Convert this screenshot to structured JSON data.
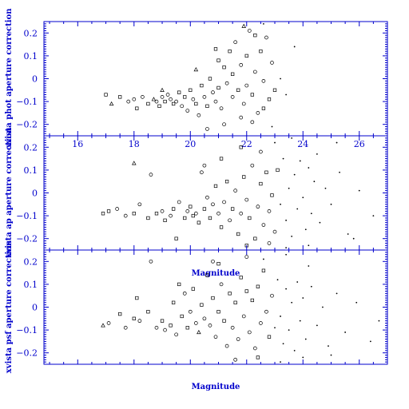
{
  "chart_data": {
    "type": "scatter",
    "xlim": [
      14.8,
      27.0
    ],
    "ylim": [
      -0.25,
      0.25
    ],
    "x_ticks": [
      16,
      18,
      20,
      22,
      24,
      26
    ],
    "y_ticks": [
      -0.2,
      -0.1,
      0,
      0.1,
      0.2
    ],
    "x_tick_labels": [
      "16",
      "18",
      "20",
      "22",
      "24",
      "26"
    ],
    "y_tick_labels": [
      "−0.2",
      "−0.1",
      "0",
      "0.1",
      "0.2"
    ],
    "grid": false,
    "panels": [
      {
        "id": "phot",
        "ylabel": "xvista phot aperture correction",
        "show_x_tick_labels": true,
        "xlabel": "",
        "points": [
          [
            17.0,
            -0.07,
            "s"
          ],
          [
            17.2,
            -0.11,
            "t"
          ],
          [
            17.5,
            -0.08,
            "s"
          ],
          [
            17.8,
            -0.1,
            "c"
          ],
          [
            18.0,
            -0.09,
            "c"
          ],
          [
            18.1,
            -0.13,
            "s"
          ],
          [
            18.3,
            -0.08,
            "c"
          ],
          [
            18.5,
            -0.11,
            "s"
          ],
          [
            18.7,
            -0.09,
            "t"
          ],
          [
            18.8,
            -0.1,
            "c"
          ],
          [
            18.9,
            -0.12,
            "s"
          ],
          [
            19.0,
            -0.08,
            "c"
          ],
          [
            19.1,
            -0.1,
            "s"
          ],
          [
            19.2,
            -0.07,
            "c"
          ],
          [
            19.3,
            -0.09,
            "c"
          ],
          [
            19.4,
            -0.11,
            "s"
          ],
          [
            19.5,
            -0.1,
            "c"
          ],
          [
            19.6,
            -0.06,
            "s"
          ],
          [
            19.7,
            -0.12,
            "c"
          ],
          [
            19.8,
            -0.08,
            "s"
          ],
          [
            19.9,
            -0.14,
            "c"
          ],
          [
            20.0,
            -0.05,
            "s"
          ],
          [
            20.1,
            -0.09,
            "c"
          ],
          [
            20.2,
            -0.11,
            "s"
          ],
          [
            20.3,
            -0.16,
            "c"
          ],
          [
            20.4,
            -0.03,
            "s"
          ],
          [
            20.5,
            -0.08,
            "c"
          ],
          [
            20.6,
            -0.12,
            "s"
          ],
          [
            20.7,
            0.0,
            "s"
          ],
          [
            20.8,
            -0.06,
            "c"
          ],
          [
            20.9,
            -0.1,
            "c"
          ],
          [
            21.0,
            -0.04,
            "s"
          ],
          [
            21.0,
            0.08,
            "s"
          ],
          [
            21.1,
            -0.13,
            "c"
          ],
          [
            21.2,
            0.05,
            "s"
          ],
          [
            21.3,
            -0.02,
            "c"
          ],
          [
            21.4,
            0.12,
            "s"
          ],
          [
            21.5,
            -0.08,
            "c"
          ],
          [
            21.5,
            0.02,
            "s"
          ],
          [
            21.6,
            0.16,
            "c"
          ],
          [
            21.7,
            -0.05,
            "s"
          ],
          [
            21.8,
            0.06,
            "c"
          ],
          [
            21.9,
            -0.11,
            "c"
          ],
          [
            22.0,
            0.1,
            "s"
          ],
          [
            22.0,
            -0.03,
            "c"
          ],
          [
            22.1,
            0.21,
            "c"
          ],
          [
            22.2,
            -0.07,
            "s"
          ],
          [
            22.3,
            0.03,
            "c"
          ],
          [
            22.4,
            -0.15,
            "c"
          ],
          [
            22.5,
            0.12,
            "s"
          ],
          [
            22.6,
            -0.01,
            "c"
          ],
          [
            22.7,
            0.18,
            "c"
          ],
          [
            22.8,
            -0.09,
            "s"
          ],
          [
            22.9,
            0.07,
            "c"
          ],
          [
            23.0,
            -0.05,
            "s"
          ],
          [
            21.2,
            -0.2,
            "c"
          ],
          [
            22.2,
            -0.19,
            "c"
          ],
          [
            20.6,
            -0.22,
            "c"
          ],
          [
            21.9,
            0.23,
            "t"
          ],
          [
            20.2,
            0.04,
            "t"
          ],
          [
            23.2,
            0.0,
            "d"
          ],
          [
            23.7,
            0.14,
            "d"
          ],
          [
            23.4,
            -0.07,
            "d"
          ],
          [
            22.9,
            -0.21,
            "d"
          ],
          [
            22.6,
            0.24,
            "d"
          ],
          [
            19.0,
            -0.05,
            "t"
          ],
          [
            20.9,
            0.13,
            "s"
          ],
          [
            22.3,
            0.19,
            "s"
          ],
          [
            21.8,
            -0.17,
            "c"
          ],
          [
            22.6,
            -0.13,
            "s"
          ]
        ]
      },
      {
        "id": "ap",
        "ylabel": "xvista ap aperture correction",
        "show_x_tick_labels": false,
        "xlabel": "Magnitude",
        "points": [
          [
            16.9,
            -0.09,
            "s"
          ],
          [
            17.1,
            -0.08,
            "s"
          ],
          [
            17.4,
            -0.07,
            "c"
          ],
          [
            17.7,
            -0.1,
            "c"
          ],
          [
            18.0,
            -0.09,
            "s"
          ],
          [
            18.0,
            0.13,
            "t"
          ],
          [
            18.2,
            -0.05,
            "c"
          ],
          [
            18.5,
            -0.11,
            "s"
          ],
          [
            18.6,
            0.08,
            "c"
          ],
          [
            18.8,
            -0.09,
            "s"
          ],
          [
            19.0,
            -0.08,
            "c"
          ],
          [
            19.1,
            -0.12,
            "s"
          ],
          [
            19.3,
            -0.1,
            "c"
          ],
          [
            19.4,
            -0.07,
            "s"
          ],
          [
            19.5,
            -0.2,
            "s"
          ],
          [
            19.6,
            -0.04,
            "c"
          ],
          [
            19.8,
            -0.11,
            "s"
          ],
          [
            19.9,
            -0.08,
            "c"
          ],
          [
            20.0,
            -0.06,
            "s"
          ],
          [
            20.1,
            -0.1,
            "s"
          ],
          [
            20.2,
            -0.09,
            "c"
          ],
          [
            20.3,
            -0.13,
            "s"
          ],
          [
            20.4,
            0.09,
            "c"
          ],
          [
            20.5,
            -0.07,
            "s"
          ],
          [
            20.6,
            -0.02,
            "c"
          ],
          [
            20.7,
            -0.11,
            "s"
          ],
          [
            20.8,
            -0.05,
            "c"
          ],
          [
            20.9,
            0.03,
            "s"
          ],
          [
            21.0,
            -0.09,
            "c"
          ],
          [
            21.1,
            -0.15,
            "s"
          ],
          [
            21.2,
            -0.04,
            "c"
          ],
          [
            21.3,
            0.05,
            "s"
          ],
          [
            21.4,
            -0.12,
            "c"
          ],
          [
            21.5,
            -0.07,
            "s"
          ],
          [
            21.6,
            0.01,
            "c"
          ],
          [
            21.7,
            -0.18,
            "s"
          ],
          [
            21.8,
            -0.09,
            "c"
          ],
          [
            21.9,
            0.07,
            "s"
          ],
          [
            22.0,
            -0.03,
            "c"
          ],
          [
            22.1,
            -0.11,
            "s"
          ],
          [
            22.2,
            0.12,
            "c"
          ],
          [
            22.3,
            -0.2,
            "s"
          ],
          [
            22.4,
            -0.06,
            "c"
          ],
          [
            22.5,
            0.04,
            "s"
          ],
          [
            22.6,
            -0.14,
            "c"
          ],
          [
            22.7,
            0.09,
            "s"
          ],
          [
            22.8,
            -0.08,
            "c"
          ],
          [
            22.9,
            -0.01,
            "s"
          ],
          [
            23.0,
            -0.17,
            "c"
          ],
          [
            23.1,
            0.1,
            "s"
          ],
          [
            23.2,
            -0.05,
            "d"
          ],
          [
            23.3,
            0.15,
            "d"
          ],
          [
            23.4,
            -0.12,
            "d"
          ],
          [
            23.5,
            0.02,
            "d"
          ],
          [
            23.6,
            -0.19,
            "d"
          ],
          [
            23.7,
            0.08,
            "d"
          ],
          [
            23.8,
            -0.07,
            "d"
          ],
          [
            23.9,
            0.14,
            "d"
          ],
          [
            24.0,
            -0.02,
            "d"
          ],
          [
            24.1,
            -0.16,
            "d"
          ],
          [
            24.2,
            0.11,
            "d"
          ],
          [
            24.3,
            -0.09,
            "d"
          ],
          [
            24.4,
            0.05,
            "d"
          ],
          [
            24.6,
            -0.13,
            "d"
          ],
          [
            24.8,
            0.02,
            "d"
          ],
          [
            25.0,
            -0.05,
            "d"
          ],
          [
            25.3,
            0.09,
            "d"
          ],
          [
            25.6,
            -0.18,
            "d"
          ],
          [
            26.0,
            0.01,
            "d"
          ],
          [
            26.5,
            -0.1,
            "d"
          ],
          [
            21.8,
            0.2,
            "s"
          ],
          [
            22.5,
            0.18,
            "c"
          ],
          [
            23.0,
            0.22,
            "d"
          ],
          [
            23.6,
            0.24,
            "d"
          ],
          [
            24.5,
            0.17,
            "d"
          ],
          [
            25.2,
            0.22,
            "d"
          ],
          [
            22.0,
            -0.23,
            "s"
          ],
          [
            22.8,
            -0.22,
            "c"
          ],
          [
            23.4,
            -0.24,
            "d"
          ],
          [
            24.2,
            -0.23,
            "d"
          ],
          [
            25.8,
            -0.2,
            "d"
          ],
          [
            20.5,
            0.12,
            "c"
          ],
          [
            21.1,
            0.15,
            "s"
          ]
        ]
      },
      {
        "id": "psf",
        "ylabel": "xvista psf aperture correction",
        "show_x_tick_labels": false,
        "xlabel": "Magnitude",
        "points": [
          [
            16.9,
            -0.08,
            "t"
          ],
          [
            17.1,
            -0.07,
            "c"
          ],
          [
            17.5,
            -0.03,
            "s"
          ],
          [
            17.7,
            -0.09,
            "c"
          ],
          [
            18.0,
            -0.05,
            "s"
          ],
          [
            18.1,
            0.04,
            "s"
          ],
          [
            18.2,
            -0.06,
            "c"
          ],
          [
            18.5,
            -0.02,
            "s"
          ],
          [
            18.6,
            0.2,
            "c"
          ],
          [
            18.8,
            -0.09,
            "c"
          ],
          [
            19.0,
            -0.06,
            "s"
          ],
          [
            19.1,
            -0.1,
            "c"
          ],
          [
            19.3,
            -0.08,
            "s"
          ],
          [
            19.4,
            0.02,
            "s"
          ],
          [
            19.5,
            -0.12,
            "c"
          ],
          [
            19.7,
            -0.04,
            "s"
          ],
          [
            19.8,
            0.06,
            "c"
          ],
          [
            19.9,
            -0.09,
            "s"
          ],
          [
            20.0,
            -0.02,
            "c"
          ],
          [
            20.1,
            0.08,
            "s"
          ],
          [
            20.2,
            -0.07,
            "c"
          ],
          [
            20.3,
            -0.11,
            "t"
          ],
          [
            20.4,
            0.01,
            "s"
          ],
          [
            20.5,
            -0.05,
            "c"
          ],
          [
            20.6,
            0.14,
            "s"
          ],
          [
            20.7,
            -0.08,
            "c"
          ],
          [
            20.8,
            0.04,
            "s"
          ],
          [
            20.9,
            -0.13,
            "c"
          ],
          [
            21.0,
            -0.02,
            "s"
          ],
          [
            21.1,
            0.1,
            "c"
          ],
          [
            21.2,
            -0.06,
            "s"
          ],
          [
            21.3,
            -0.17,
            "c"
          ],
          [
            21.4,
            0.06,
            "s"
          ],
          [
            21.5,
            -0.09,
            "c"
          ],
          [
            21.6,
            0.02,
            "s"
          ],
          [
            21.7,
            -0.14,
            "c"
          ],
          [
            21.8,
            0.13,
            "s"
          ],
          [
            21.9,
            -0.04,
            "c"
          ],
          [
            22.0,
            0.07,
            "s"
          ],
          [
            22.1,
            -0.11,
            "c"
          ],
          [
            22.2,
            0.03,
            "s"
          ],
          [
            22.3,
            -0.18,
            "c"
          ],
          [
            22.4,
            0.09,
            "s"
          ],
          [
            22.5,
            -0.07,
            "c"
          ],
          [
            22.6,
            0.16,
            "s"
          ],
          [
            22.7,
            -0.02,
            "c"
          ],
          [
            22.8,
            -0.13,
            "s"
          ],
          [
            22.9,
            0.05,
            "c"
          ],
          [
            23.0,
            -0.09,
            "d"
          ],
          [
            23.1,
            0.12,
            "d"
          ],
          [
            23.2,
            -0.04,
            "d"
          ],
          [
            23.3,
            -0.16,
            "d"
          ],
          [
            23.4,
            0.08,
            "d"
          ],
          [
            23.5,
            -0.1,
            "d"
          ],
          [
            23.6,
            0.02,
            "d"
          ],
          [
            23.7,
            -0.19,
            "d"
          ],
          [
            23.8,
            0.11,
            "d"
          ],
          [
            23.9,
            -0.06,
            "d"
          ],
          [
            24.0,
            0.04,
            "d"
          ],
          [
            24.1,
            -0.14,
            "d"
          ],
          [
            24.3,
            0.09,
            "d"
          ],
          [
            24.5,
            -0.08,
            "d"
          ],
          [
            24.7,
            0.0,
            "d"
          ],
          [
            24.9,
            -0.17,
            "d"
          ],
          [
            25.2,
            0.06,
            "d"
          ],
          [
            25.5,
            -0.11,
            "d"
          ],
          [
            25.9,
            0.02,
            "d"
          ],
          [
            26.4,
            -0.15,
            "d"
          ],
          [
            26.7,
            -0.06,
            "d"
          ],
          [
            21.0,
            0.19,
            "s"
          ],
          [
            22.0,
            0.22,
            "c"
          ],
          [
            22.6,
            0.21,
            "d"
          ],
          [
            23.4,
            0.23,
            "d"
          ],
          [
            24.2,
            0.18,
            "d"
          ],
          [
            21.6,
            -0.23,
            "c"
          ],
          [
            22.4,
            -0.22,
            "s"
          ],
          [
            23.2,
            -0.24,
            "d"
          ],
          [
            24.0,
            -0.22,
            "d"
          ],
          [
            25.0,
            -0.21,
            "d"
          ],
          [
            19.6,
            0.1,
            "s"
          ],
          [
            20.8,
            0.2,
            "c"
          ]
        ]
      }
    ]
  }
}
